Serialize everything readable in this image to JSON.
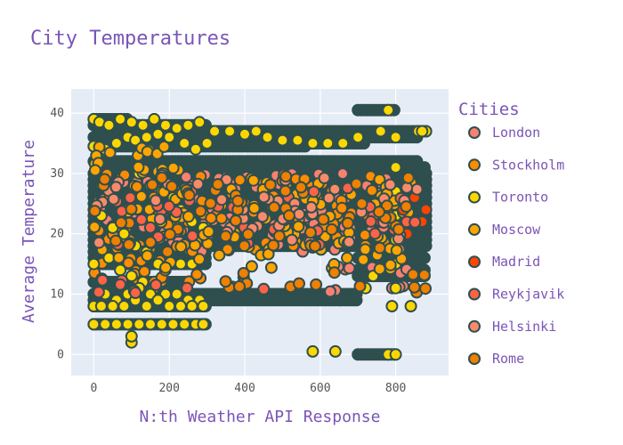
{
  "chart_data": {
    "type": "scatter",
    "title": "City Temperatures",
    "xlabel": "N:th Weather API Response",
    "ylabel": "Average Temperature",
    "xlim": [
      -60,
      940
    ],
    "ylim": [
      -3.5,
      44
    ],
    "x_ticks": [
      0,
      200,
      400,
      600,
      800
    ],
    "y_ticks": [
      0,
      10,
      20,
      30,
      40
    ],
    "grid": true,
    "legend": {
      "title": "Cities",
      "position": "right"
    },
    "marker": {
      "edge_color": "#2f4f4f",
      "size": 5
    },
    "colors": {
      "plot_background": "#e5ecf6",
      "grid": "#ffffff",
      "title_text": "#7a55b6",
      "tick_text": "#555555"
    },
    "series": [
      {
        "name": "London",
        "color": "#fa8072",
        "bands": [
          {
            "x0": 0,
            "x1": 830,
            "y0": 17,
            "y1": 30,
            "n": 120
          },
          {
            "x0": 580,
            "x1": 880,
            "y0": 10,
            "y1": 15,
            "n": 12
          }
        ]
      },
      {
        "name": "Stockholm",
        "color": "#ff8c00",
        "bands": [
          {
            "x0": 0,
            "x1": 800,
            "y0": 17,
            "y1": 30,
            "n": 110
          },
          {
            "x0": 0,
            "x1": 300,
            "y0": 12,
            "y1": 16,
            "n": 20
          }
        ]
      },
      {
        "name": "Toronto",
        "color": "#ffd700",
        "points": [
          [
            0,
            39
          ],
          [
            15,
            38.5
          ],
          [
            40,
            38
          ],
          [
            70,
            39
          ],
          [
            100,
            38.5
          ],
          [
            130,
            38
          ],
          [
            160,
            39
          ],
          [
            190,
            38
          ],
          [
            220,
            37.5
          ],
          [
            250,
            38
          ],
          [
            280,
            38.5
          ],
          [
            320,
            37
          ],
          [
            360,
            37
          ],
          [
            400,
            36.5
          ],
          [
            430,
            37
          ],
          [
            460,
            36
          ],
          [
            500,
            35.5
          ],
          [
            540,
            35.5
          ],
          [
            580,
            35
          ],
          [
            620,
            35
          ],
          [
            660,
            35
          ],
          [
            700,
            36
          ],
          [
            780,
            40.5
          ],
          [
            860,
            37
          ],
          [
            880,
            37
          ],
          [
            0,
            34.5
          ],
          [
            30,
            34
          ],
          [
            60,
            35
          ],
          [
            90,
            36
          ],
          [
            110,
            35.5
          ],
          [
            140,
            36
          ],
          [
            170,
            36.5
          ],
          [
            200,
            36
          ],
          [
            240,
            35
          ],
          [
            270,
            34
          ],
          [
            300,
            35
          ],
          [
            120,
            30
          ],
          [
            150,
            28
          ],
          [
            180,
            27
          ],
          [
            210,
            26
          ],
          [
            230,
            24
          ],
          [
            260,
            22
          ],
          [
            290,
            21
          ],
          [
            20,
            23
          ],
          [
            50,
            21
          ],
          [
            80,
            20
          ],
          [
            110,
            18
          ],
          [
            140,
            17
          ],
          [
            170,
            15
          ],
          [
            200,
            15
          ],
          [
            230,
            15
          ],
          [
            260,
            15
          ],
          [
            0,
            15
          ],
          [
            40,
            16
          ],
          [
            70,
            14
          ],
          [
            100,
            13
          ],
          [
            130,
            12
          ],
          [
            160,
            11
          ],
          [
            190,
            10
          ],
          [
            220,
            10
          ],
          [
            250,
            9
          ],
          [
            280,
            9
          ],
          [
            30,
            10
          ],
          [
            60,
            9
          ],
          [
            90,
            10
          ],
          [
            120,
            11
          ],
          [
            150,
            10
          ],
          [
            0,
            8
          ],
          [
            20,
            8
          ],
          [
            50,
            8
          ],
          [
            80,
            8
          ],
          [
            110,
            9
          ],
          [
            140,
            8
          ],
          [
            170,
            9
          ],
          [
            200,
            8
          ],
          [
            230,
            8
          ],
          [
            260,
            8
          ],
          [
            290,
            8
          ],
          [
            0,
            5
          ],
          [
            30,
            5
          ],
          [
            60,
            5
          ],
          [
            90,
            5
          ],
          [
            120,
            5
          ],
          [
            150,
            5
          ],
          [
            180,
            5
          ],
          [
            210,
            5
          ],
          [
            240,
            5
          ],
          [
            270,
            5
          ],
          [
            290,
            5
          ],
          [
            100,
            2
          ],
          [
            100,
            3
          ],
          [
            800,
            31
          ],
          [
            800,
            27
          ],
          [
            800,
            23
          ],
          [
            800,
            19
          ],
          [
            800,
            15
          ],
          [
            800,
            11
          ],
          [
            790,
            8
          ],
          [
            840,
            8
          ],
          [
            780,
            0
          ],
          [
            800,
            0
          ],
          [
            580,
            0.5
          ],
          [
            640,
            0.5
          ],
          [
            740,
            13
          ],
          [
            720,
            11
          ],
          [
            870,
            37
          ],
          [
            800,
            36
          ],
          [
            760,
            37
          ]
        ]
      },
      {
        "name": "Moscow",
        "color": "#ffa500",
        "bands": [
          {
            "x0": 0,
            "x1": 850,
            "y0": 14,
            "y1": 29,
            "n": 110
          },
          {
            "x0": 0,
            "x1": 250,
            "y0": 30,
            "y1": 35,
            "n": 20
          }
        ]
      },
      {
        "name": "Madrid",
        "color": "#ff4500",
        "points": [
          [
            880,
            24
          ],
          [
            870,
            22
          ],
          [
            850,
            26
          ],
          [
            830,
            20
          ],
          [
            820,
            24
          ],
          [
            760,
            22
          ]
        ]
      },
      {
        "name": "Reykjavik",
        "color": "#ff6347",
        "bands": [
          {
            "x0": 0,
            "x1": 870,
            "y0": 18,
            "y1": 28,
            "n": 40
          },
          {
            "x0": 0,
            "x1": 600,
            "y0": 10,
            "y1": 13,
            "n": 12
          }
        ]
      },
      {
        "name": "Helsinki",
        "color": "#f98a6a",
        "bands": [
          {
            "x0": 0,
            "x1": 860,
            "y0": 18,
            "y1": 30,
            "n": 50
          }
        ]
      },
      {
        "name": "Rome",
        "color": "#f08000",
        "bands": [
          {
            "x0": 0,
            "x1": 860,
            "y0": 17,
            "y1": 30,
            "n": 60
          },
          {
            "x0": 300,
            "x1": 900,
            "y0": 10,
            "y1": 14,
            "n": 15
          }
        ]
      }
    ],
    "background_rows": [
      {
        "x0": 0,
        "x1": 90,
        "y": 39
      },
      {
        "x0": 0,
        "x1": 300,
        "y": 38
      },
      {
        "x0": 200,
        "x1": 880,
        "y": 37
      },
      {
        "x0": 0,
        "x1": 860,
        "y": 36
      },
      {
        "x0": 300,
        "x1": 720,
        "y": 35
      },
      {
        "x0": 0,
        "x1": 560,
        "y": 34.5
      },
      {
        "x0": 700,
        "x1": 800,
        "y": 40.5
      },
      {
        "x0": 0,
        "x1": 860,
        "y": 32
      },
      {
        "x0": 700,
        "x1": 880,
        "y": 31
      },
      {
        "x0": 0,
        "x1": 880,
        "y": 30
      },
      {
        "x0": 0,
        "x1": 880,
        "y": 29
      },
      {
        "x0": 0,
        "x1": 880,
        "y": 28
      },
      {
        "x0": 0,
        "x1": 880,
        "y": 27
      },
      {
        "x0": 0,
        "x1": 880,
        "y": 26
      },
      {
        "x0": 0,
        "x1": 880,
        "y": 25
      },
      {
        "x0": 0,
        "x1": 880,
        "y": 24
      },
      {
        "x0": 0,
        "x1": 880,
        "y": 23
      },
      {
        "x0": 0,
        "x1": 880,
        "y": 22
      },
      {
        "x0": 0,
        "x1": 880,
        "y": 21
      },
      {
        "x0": 0,
        "x1": 880,
        "y": 20
      },
      {
        "x0": 0,
        "x1": 880,
        "y": 19
      },
      {
        "x0": 0,
        "x1": 880,
        "y": 18
      },
      {
        "x0": 0,
        "x1": 300,
        "y": 17
      },
      {
        "x0": 0,
        "x1": 300,
        "y": 16
      },
      {
        "x0": 0,
        "x1": 300,
        "y": 15
      },
      {
        "x0": 700,
        "x1": 880,
        "y": 16
      },
      {
        "x0": 700,
        "x1": 880,
        "y": 14
      },
      {
        "x0": 0,
        "x1": 240,
        "y": 12
      },
      {
        "x0": 700,
        "x1": 880,
        "y": 13
      },
      {
        "x0": 0,
        "x1": 700,
        "y": 10
      },
      {
        "x0": 0,
        "x1": 700,
        "y": 9
      },
      {
        "x0": 0,
        "x1": 300,
        "y": 8
      },
      {
        "x0": 0,
        "x1": 300,
        "y": 5
      },
      {
        "x0": 700,
        "x1": 800,
        "y": 0
      }
    ]
  }
}
